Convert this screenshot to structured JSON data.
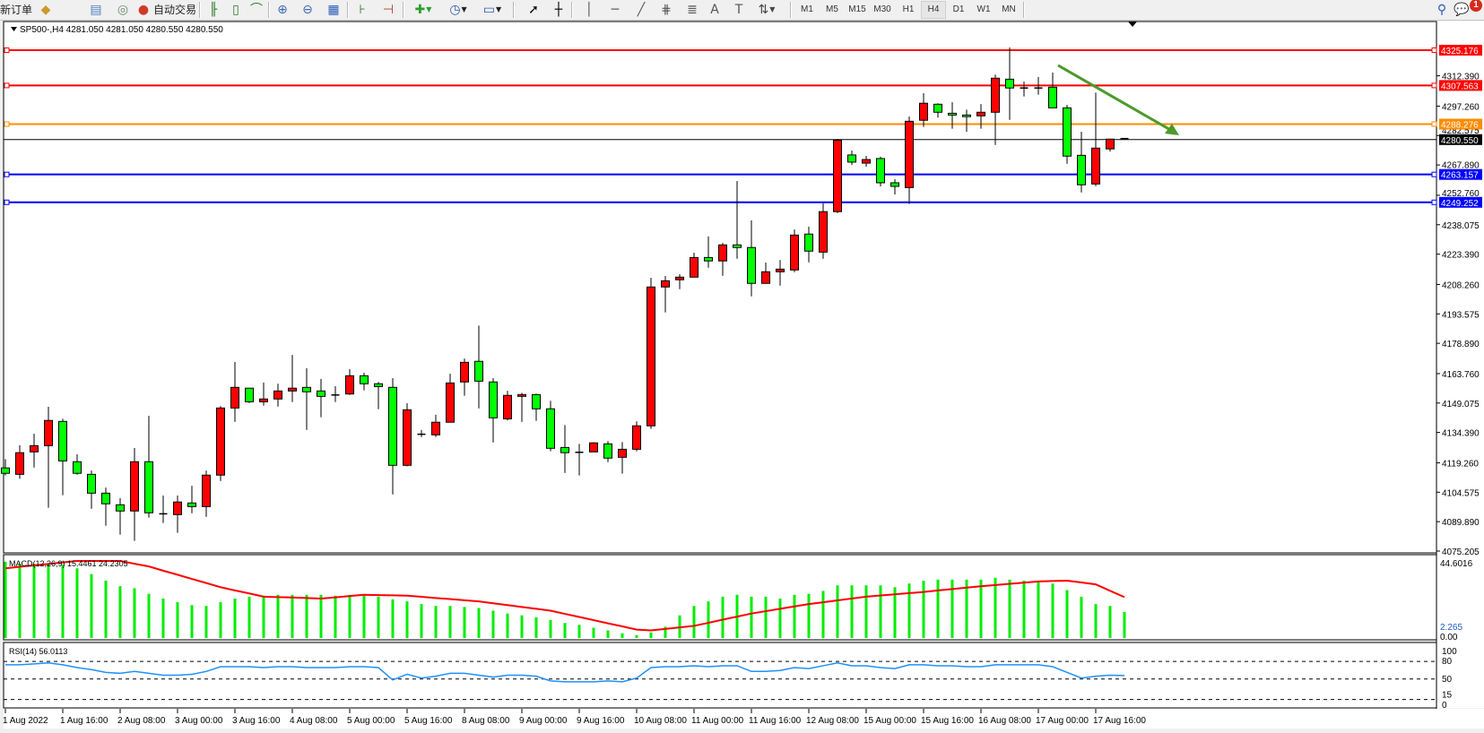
{
  "toolbar": {
    "new_order_label": "新订单",
    "auto_trading_label": "自动交易",
    "timeframes": [
      "M1",
      "M5",
      "M15",
      "M30",
      "H1",
      "H4",
      "D1",
      "W1",
      "MN"
    ],
    "active_timeframe": "H4",
    "notification_count": "1",
    "icons": [
      "market-watch-icon",
      "navigator-icon",
      "signals-icon",
      "auto-trading-icon",
      "bar-chart-icon",
      "candlestick-icon",
      "line-chart-icon",
      "zoom-in-icon",
      "zoom-out-icon",
      "tile-windows-icon",
      "chart-shift-icon",
      "auto-scroll-icon",
      "indicators-icon",
      "periods-icon",
      "templates-icon",
      "cursor-icon",
      "crosshair-icon",
      "vertical-line-icon",
      "horizontal-line-icon",
      "trendline-icon",
      "fibonacci-icon",
      "fibonacci-fan-icon",
      "text-icon",
      "text-label-icon",
      "arrows-icon",
      "search-icon",
      "notifications-icon"
    ]
  },
  "chart": {
    "header": "SP500-,H4  4281.050 4281.050 4280.550 4280.550",
    "colors": {
      "bull": "#ff0000",
      "bear": "#00ff00",
      "resistance": "#ff0000",
      "pivot": "#ff8c00",
      "support": "#0000ff",
      "bid": "#000000",
      "arrow": "#4c9a2a",
      "macd_hist": "#00ee00",
      "macd_signal": "#ff0000",
      "rsi": "#1e90ff"
    },
    "price_ticks": [
      "4312.390",
      "4297.260",
      "4282.575",
      "4267.890",
      "4252.760",
      "4238.075",
      "4223.390",
      "4208.260",
      "4193.575",
      "4178.890",
      "4163.760",
      "4149.075",
      "4134.390",
      "4119.260",
      "4104.575",
      "4089.890",
      "4075.205"
    ],
    "levels": [
      {
        "label": "4325.176",
        "value": 4325.176,
        "kind": "resistance"
      },
      {
        "label": "4307.563",
        "value": 4307.563,
        "kind": "resistance"
      },
      {
        "label": "4288.276",
        "value": 4288.276,
        "kind": "pivot"
      },
      {
        "label": "4263.157",
        "value": 4263.157,
        "kind": "support"
      },
      {
        "label": "4249.252",
        "value": 4249.252,
        "kind": "support"
      }
    ],
    "bid": {
      "label": "4280.550",
      "value": 4280.55
    },
    "time_labels": [
      "1 Aug 2022",
      "1 Aug 16:00",
      "2 Aug 08:00",
      "3 Aug 00:00",
      "3 Aug 16:00",
      "4 Aug 08:00",
      "5 Aug 00:00",
      "5 Aug 16:00",
      "8 Aug 08:00",
      "9 Aug 00:00",
      "9 Aug 16:00",
      "10 Aug 08:00",
      "11 Aug 00:00",
      "11 Aug 16:00",
      "12 Aug 08:00",
      "15 Aug 00:00",
      "15 Aug 16:00",
      "16 Aug 08:00",
      "17 Aug 00:00",
      "17 Aug 16:00"
    ],
    "macd": {
      "label": "MACD(12,26,9) 15.4461 24.2305",
      "axis_top": "44.6016",
      "axis_bottom_a": "2.265",
      "axis_bottom_b": "0.00"
    },
    "rsi": {
      "label": "RSI(14) 56.0113",
      "levels": [
        "100",
        "80",
        "50",
        "15",
        "0"
      ]
    }
  },
  "chart_data": {
    "type": "candlestick",
    "symbol": "SP500-",
    "timeframe": "H4",
    "ylim": [
      4075.205,
      4327
    ],
    "ohlc": [
      [
        4116.7,
        4121.1,
        4112.9,
        4114.0
      ],
      [
        4113.5,
        4128.0,
        4111.3,
        4124.3
      ],
      [
        4124.7,
        4133.8,
        4116.9,
        4127.8
      ],
      [
        4127.8,
        4147.2,
        4096.8,
        4140.4
      ],
      [
        4139.9,
        4141.2,
        4103.1,
        4120.2
      ],
      [
        4119.8,
        4123.5,
        4113.3,
        4114.0
      ],
      [
        4113.5,
        4115.4,
        4096.3,
        4104.1
      ],
      [
        4104.1,
        4106.9,
        4087.9,
        4098.8
      ],
      [
        4098.3,
        4101.6,
        4083.4,
        4095.2
      ],
      [
        4095.2,
        4126.6,
        4080.3,
        4119.8
      ],
      [
        4119.8,
        4142.7,
        4091.9,
        4094.3
      ],
      [
        4093.8,
        4102.9,
        4089.2,
        4093.8
      ],
      [
        4093.4,
        4102.9,
        4084.3,
        4099.7
      ],
      [
        4099.2,
        4107.8,
        4094.1,
        4097.4
      ],
      [
        4097.4,
        4115.4,
        4092.3,
        4113.1
      ],
      [
        4113.1,
        4147.5,
        4110.2,
        4146.6
      ],
      [
        4146.6,
        4169.6,
        4139.7,
        4156.9
      ],
      [
        4156.5,
        4156.5,
        4149.1,
        4149.7
      ],
      [
        4149.7,
        4159.3,
        4147.8,
        4151.1
      ],
      [
        4151.1,
        4158.7,
        4147.3,
        4155.1
      ],
      [
        4155.1,
        4173.1,
        4149.6,
        4156.5
      ],
      [
        4156.9,
        4166.4,
        4135.7,
        4154.7
      ],
      [
        4155.1,
        4161.1,
        4142.0,
        4152.4
      ],
      [
        4153.1,
        4157.5,
        4149.6,
        4153.1
      ],
      [
        4153.6,
        4166.0,
        4153.1,
        4162.7
      ],
      [
        4162.7,
        4164.2,
        4155.4,
        4158.7
      ],
      [
        4158.7,
        4159.6,
        4146.0,
        4157.3
      ],
      [
        4156.9,
        4161.5,
        4103.5,
        4118.0
      ],
      [
        4118.0,
        4149.0,
        4117.5,
        4145.7
      ],
      [
        4133.5,
        4135.6,
        4132.1,
        4133.5
      ],
      [
        4133.2,
        4143.2,
        4132.1,
        4139.5
      ],
      [
        4139.5,
        4163.7,
        4139.5,
        4159.1
      ],
      [
        4159.6,
        4171.3,
        4152.7,
        4169.4
      ],
      [
        4169.9,
        4187.7,
        4146.4,
        4160.0
      ],
      [
        4159.6,
        4161.5,
        4129.4,
        4141.7
      ],
      [
        4141.2,
        4155.2,
        4140.4,
        4152.9
      ],
      [
        4152.4,
        4154.2,
        4139.7,
        4153.3
      ],
      [
        4153.3,
        4153.8,
        4140.2,
        4146.2
      ],
      [
        4146.2,
        4150.2,
        4125.0,
        4126.5
      ],
      [
        4126.9,
        4138.1,
        4114.2,
        4124.3
      ],
      [
        4124.5,
        4128.7,
        4112.9,
        4124.5
      ],
      [
        4124.7,
        4129.6,
        4124.7,
        4129.2
      ],
      [
        4128.7,
        4130.1,
        4119.6,
        4121.6
      ],
      [
        4122.0,
        4129.6,
        4113.8,
        4126.0
      ],
      [
        4126.0,
        4139.9,
        4125.0,
        4137.7
      ],
      [
        4137.7,
        4211.6,
        4136.2,
        4207.0
      ],
      [
        4207.0,
        4212.5,
        4194.3,
        4210.1
      ],
      [
        4210.6,
        4213.4,
        4205.9,
        4211.9
      ],
      [
        4211.9,
        4224.1,
        4211.9,
        4221.7
      ],
      [
        4221.7,
        4232.2,
        4216.6,
        4220.0
      ],
      [
        4220.0,
        4229.0,
        4212.6,
        4228.0
      ],
      [
        4228.0,
        4259.9,
        4221.1,
        4226.7
      ],
      [
        4226.7,
        4240.2,
        4202.3,
        4208.8
      ],
      [
        4208.8,
        4219.2,
        4208.8,
        4214.6
      ],
      [
        4214.6,
        4220.5,
        4207.7,
        4215.9
      ],
      [
        4215.5,
        4235.7,
        4214.4,
        4232.9
      ],
      [
        4233.4,
        4237.1,
        4219.3,
        4224.9
      ],
      [
        4224.4,
        4248.8,
        4221.1,
        4244.6
      ],
      [
        4244.6,
        4280.9,
        4243.9,
        4280.2
      ],
      [
        4272.9,
        4275.1,
        4267.9,
        4269.3
      ],
      [
        4268.8,
        4272.4,
        4267.0,
        4270.6
      ],
      [
        4271.1,
        4272.0,
        4257.2,
        4259.0
      ],
      [
        4259.0,
        4260.8,
        4253.2,
        4257.2
      ],
      [
        4256.6,
        4292.1,
        4248.4,
        4289.7
      ],
      [
        4290.2,
        4303.7,
        4286.9,
        4298.7
      ],
      [
        4298.2,
        4298.7,
        4291.5,
        4294.2
      ],
      [
        4293.7,
        4299.2,
        4286.0,
        4292.8
      ],
      [
        4292.8,
        4295.5,
        4284.4,
        4292.0
      ],
      [
        4292.4,
        4298.3,
        4286.0,
        4294.2
      ],
      [
        4294.2,
        4313.0,
        4277.9,
        4311.2
      ],
      [
        4310.7,
        4326.5,
        4290.4,
        4306.3
      ],
      [
        4306.3,
        4309.5,
        4302.1,
        4306.3
      ],
      [
        4306.3,
        4311.8,
        4303.0,
        4306.3
      ],
      [
        4306.7,
        4314.0,
        4296.4,
        4296.4
      ],
      [
        4296.4,
        4297.9,
        4268.5,
        4272.3
      ],
      [
        4272.7,
        4284.5,
        4254.2,
        4258.0
      ],
      [
        4258.4,
        4304.0,
        4257.3,
        4276.3
      ],
      [
        4275.9,
        4280.8,
        4274.6,
        4280.8
      ],
      [
        4281.05,
        4281.05,
        4280.55,
        4280.55
      ]
    ],
    "macd_main": [
      45.2,
      44.0,
      44.0,
      43.5,
      43.5,
      41.3,
      37.9,
      34.0,
      30.7,
      29.5,
      26.2,
      23.4,
      21.2,
      19.5,
      19.0,
      21.2,
      23.4,
      24.5,
      25.1,
      25.6,
      25.6,
      25.6,
      25.6,
      25.1,
      25.6,
      25.6,
      24.5,
      22.9,
      21.7,
      20.1,
      19.0,
      19.0,
      18.4,
      17.8,
      16.2,
      14.5,
      13.4,
      12.3,
      10.6,
      8.9,
      7.8,
      6.1,
      4.5,
      2.8,
      1.7,
      3.3,
      6.7,
      13.4,
      19.0,
      21.7,
      24.5,
      25.6,
      24.5,
      24.5,
      23.4,
      25.6,
      26.2,
      27.9,
      31.2,
      31.2,
      31.2,
      31.2,
      30.1,
      32.3,
      34.0,
      34.6,
      34.6,
      34.6,
      34.6,
      35.7,
      34.6,
      34.0,
      33.5,
      32.3,
      28.4,
      24.5,
      20.1,
      19.0,
      15.4461
    ],
    "macd_signal": [
      41.3,
      42.2,
      43.1,
      43.9,
      44.8,
      45.7,
      45.7,
      45.7,
      45.7,
      44.0,
      42.4,
      39.9,
      37.5,
      35.0,
      32.6,
      30.1,
      28.2,
      26.4,
      24.5,
      24.2,
      24.0,
      23.7,
      23.4,
      24.1,
      24.9,
      25.6,
      25.4,
      25.3,
      25.1,
      24.4,
      23.7,
      23.1,
      22.4,
      21.7,
      20.6,
      19.5,
      18.4,
      17.3,
      16.2,
      14.3,
      12.5,
      10.6,
      8.7,
      6.9,
      5.0,
      4.5,
      5.4,
      6.3,
      7.2,
      9.0,
      10.9,
      12.7,
      14.5,
      15.9,
      17.3,
      18.7,
      20.1,
      21.2,
      22.3,
      23.4,
      24.5,
      25.2,
      25.9,
      26.6,
      27.3,
      28.2,
      29.0,
      29.9,
      30.7,
      31.4,
      32.1,
      32.8,
      33.5,
      33.8,
      34.0,
      32.9,
      31.8,
      28.0,
      24.2305
    ],
    "macd_ylim": [
      0,
      44.6016
    ],
    "rsi": [
      74.2,
      74.2,
      75.8,
      77.4,
      74.2,
      69.4,
      66.1,
      61.3,
      59.7,
      62.9,
      59.7,
      56.5,
      56.5,
      58.1,
      62.9,
      71.0,
      71.0,
      71.0,
      69.4,
      71.0,
      71.0,
      69.4,
      69.4,
      69.4,
      71.0,
      71.0,
      69.4,
      48.4,
      58.1,
      51.6,
      54.8,
      59.7,
      59.7,
      56.5,
      53.2,
      56.5,
      56.5,
      54.8,
      46.8,
      45.2,
      45.2,
      45.2,
      46.8,
      45.2,
      51.6,
      69.4,
      71.0,
      71.0,
      72.6,
      71.0,
      72.6,
      72.6,
      62.9,
      62.9,
      64.5,
      69.4,
      67.7,
      72.6,
      77.4,
      72.6,
      72.6,
      69.4,
      67.7,
      74.2,
      74.2,
      72.6,
      72.6,
      71.0,
      71.0,
      74.2,
      74.2,
      74.2,
      74.2,
      71.0,
      61.3,
      51.6,
      54.8,
      56.5,
      56.0113
    ],
    "rsi_ylim": [
      0,
      100
    ],
    "trend_arrow": {
      "from": {
        "bar": 73,
        "price": 4317.6
      },
      "to": {
        "bar": 81,
        "price": 4282.7
      }
    }
  }
}
